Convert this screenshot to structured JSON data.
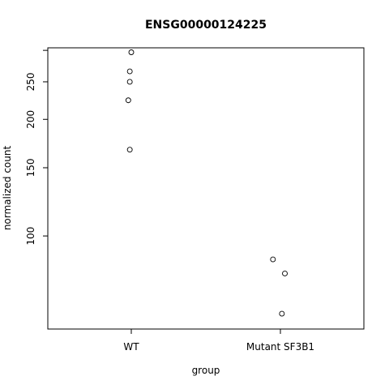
{
  "chart_data": {
    "type": "scatter",
    "title": "ENSG00000124225",
    "xlabel": "group",
    "ylabel": "normalized count",
    "categories": [
      "WT",
      "Mutant SF3B1"
    ],
    "y_scale": "log",
    "y_ticks": [
      100,
      150,
      200,
      250
    ],
    "ylim": [
      57.5,
      306
    ],
    "grid": false,
    "series": [
      {
        "points": [
          {
            "category": "WT",
            "x_jitter": 0.0,
            "y": 298
          },
          {
            "category": "WT",
            "x_jitter": -0.01,
            "y": 266
          },
          {
            "category": "WT",
            "x_jitter": -0.01,
            "y": 250
          },
          {
            "category": "WT",
            "x_jitter": -0.02,
            "y": 224
          },
          {
            "category": "WT",
            "x_jitter": -0.01,
            "y": 167
          },
          {
            "category": "Mutant SF3B1",
            "x_jitter": -0.05,
            "y": 87
          },
          {
            "category": "Mutant SF3B1",
            "x_jitter": 0.03,
            "y": 80
          },
          {
            "category": "Mutant SF3B1",
            "x_jitter": 0.01,
            "y": 63
          }
        ]
      }
    ]
  }
}
